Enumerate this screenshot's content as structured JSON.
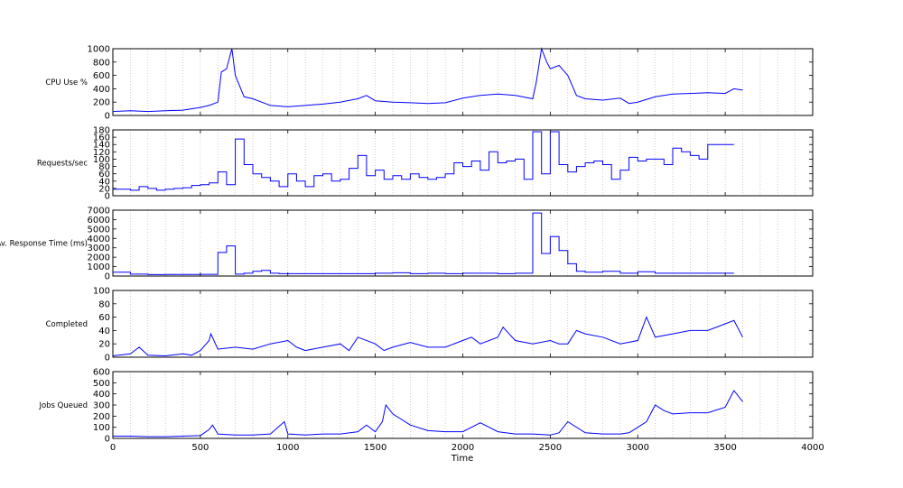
{
  "chart_data": [
    {
      "type": "line",
      "ylabel": "CPU Use %",
      "ylim": [
        0,
        1000
      ],
      "yticks": [
        "0",
        "200",
        "400",
        "600",
        "800",
        "1000"
      ],
      "xlim": [
        0,
        4000
      ],
      "grid": "vertical-dotted",
      "color": "#0000ff",
      "series": [
        {
          "x": [
            0,
            100,
            200,
            300,
            400,
            500,
            550,
            600,
            620,
            650,
            680,
            700,
            750,
            800,
            850,
            900,
            1000,
            1100,
            1200,
            1300,
            1400,
            1450,
            1500,
            1600,
            1700,
            1800,
            1900,
            2000,
            2100,
            2200,
            2300,
            2400,
            2420,
            2450,
            2480,
            2500,
            2550,
            2600,
            2650,
            2700,
            2800,
            2900,
            2950,
            3000,
            3100,
            3200,
            3300,
            3400,
            3500,
            3550,
            3600
          ],
          "y": [
            60,
            70,
            60,
            70,
            80,
            120,
            150,
            200,
            650,
            700,
            1000,
            600,
            280,
            250,
            200,
            150,
            130,
            150,
            170,
            200,
            250,
            300,
            220,
            200,
            190,
            180,
            190,
            260,
            300,
            320,
            300,
            250,
            500,
            1000,
            800,
            700,
            750,
            600,
            300,
            250,
            230,
            260,
            180,
            200,
            280,
            320,
            330,
            340,
            330,
            400,
            380
          ]
        }
      ]
    },
    {
      "type": "line",
      "ylabel": "Requests/sec",
      "ylim": [
        0,
        180
      ],
      "yticks": [
        "0",
        "20",
        "40",
        "60",
        "80",
        "100",
        "120",
        "140",
        "160",
        "180"
      ],
      "xlim": [
        0,
        4000
      ],
      "grid": "vertical-dotted",
      "step": true,
      "color": "#0000ff",
      "series": [
        {
          "x": [
            0,
            100,
            150,
            200,
            250,
            300,
            350,
            400,
            450,
            500,
            550,
            600,
            650,
            700,
            750,
            800,
            850,
            900,
            950,
            1000,
            1050,
            1100,
            1150,
            1200,
            1250,
            1300,
            1350,
            1400,
            1450,
            1500,
            1550,
            1600,
            1650,
            1700,
            1750,
            1800,
            1850,
            1900,
            1950,
            2000,
            2050,
            2100,
            2150,
            2200,
            2250,
            2300,
            2350,
            2400,
            2450,
            2500,
            2550,
            2600,
            2650,
            2700,
            2750,
            2800,
            2850,
            2900,
            2950,
            3000,
            3050,
            3100,
            3150,
            3200,
            3250,
            3300,
            3350,
            3400,
            3450,
            3500,
            3550
          ],
          "y": [
            18,
            15,
            25,
            20,
            15,
            18,
            20,
            22,
            28,
            30,
            35,
            65,
            30,
            155,
            85,
            60,
            50,
            40,
            25,
            60,
            40,
            25,
            55,
            60,
            40,
            45,
            75,
            110,
            55,
            70,
            45,
            55,
            45,
            60,
            50,
            45,
            50,
            60,
            90,
            80,
            95,
            70,
            120,
            90,
            95,
            100,
            45,
            175,
            60,
            175,
            85,
            65,
            80,
            90,
            95,
            85,
            45,
            70,
            105,
            95,
            100,
            100,
            85,
            130,
            120,
            110,
            100,
            140,
            140,
            140,
            140
          ]
        }
      ]
    },
    {
      "type": "line",
      "ylabel": "Av. Response Time (ms)",
      "ylim": [
        0,
        7000
      ],
      "yticks": [
        "0",
        "1000",
        "2000",
        "3000",
        "4000",
        "5000",
        "6000",
        "7000"
      ],
      "xlim": [
        0,
        4000
      ],
      "grid": "vertical-dotted",
      "step": true,
      "color": "#0000ff",
      "series": [
        {
          "x": [
            0,
            100,
            200,
            300,
            400,
            500,
            600,
            650,
            700,
            750,
            800,
            850,
            900,
            950,
            1000,
            1100,
            1200,
            1300,
            1400,
            1500,
            1600,
            1700,
            1800,
            1900,
            2000,
            2100,
            2200,
            2300,
            2400,
            2450,
            2500,
            2550,
            2600,
            2650,
            2700,
            2800,
            2900,
            3000,
            3100,
            3200,
            3300,
            3400,
            3500,
            3550
          ],
          "y": [
            400,
            200,
            150,
            160,
            170,
            180,
            2500,
            3200,
            200,
            300,
            500,
            600,
            300,
            250,
            250,
            250,
            250,
            250,
            250,
            300,
            350,
            250,
            300,
            250,
            300,
            300,
            250,
            300,
            6700,
            2400,
            4200,
            2700,
            1300,
            500,
            400,
            500,
            300,
            450,
            300,
            300,
            300,
            300,
            300,
            300
          ]
        }
      ]
    },
    {
      "type": "line",
      "ylabel": "Completed",
      "ylim": [
        0,
        100
      ],
      "yticks": [
        "0",
        "20",
        "40",
        "60",
        "80",
        "100"
      ],
      "xlim": [
        0,
        4000
      ],
      "grid": "vertical-dotted",
      "color": "#0000ff",
      "series": [
        {
          "x": [
            0,
            100,
            150,
            200,
            300,
            400,
            450,
            500,
            550,
            560,
            600,
            700,
            800,
            900,
            1000,
            1050,
            1100,
            1200,
            1300,
            1350,
            1400,
            1500,
            1550,
            1600,
            1700,
            1800,
            1900,
            2000,
            2050,
            2100,
            2200,
            2230,
            2300,
            2400,
            2500,
            2550,
            2600,
            2650,
            2700,
            2800,
            2900,
            3000,
            3050,
            3100,
            3200,
            3300,
            3400,
            3500,
            3550,
            3600
          ],
          "y": [
            2,
            5,
            15,
            3,
            2,
            5,
            3,
            10,
            25,
            35,
            12,
            15,
            12,
            20,
            25,
            15,
            10,
            15,
            20,
            10,
            30,
            20,
            10,
            15,
            22,
            15,
            15,
            25,
            30,
            20,
            30,
            45,
            25,
            20,
            25,
            20,
            20,
            40,
            35,
            30,
            20,
            25,
            60,
            30,
            35,
            40,
            40,
            50,
            55,
            30
          ]
        }
      ]
    },
    {
      "type": "line",
      "ylabel": "Jobs Queued",
      "ylim": [
        0,
        600
      ],
      "yticks": [
        "0",
        "100",
        "200",
        "300",
        "400",
        "500",
        "600"
      ],
      "xlim": [
        0,
        4000
      ],
      "xticks": [
        "0",
        "500",
        "1000",
        "1500",
        "2000",
        "2500",
        "3000",
        "3500",
        "4000"
      ],
      "xlabel": "Time",
      "grid": "vertical-dotted",
      "color": "#0000ff",
      "series": [
        {
          "x": [
            0,
            100,
            200,
            300,
            400,
            500,
            550,
            570,
            600,
            700,
            800,
            900,
            980,
            1000,
            1100,
            1200,
            1300,
            1400,
            1450,
            1500,
            1540,
            1560,
            1600,
            1700,
            1800,
            1900,
            2000,
            2100,
            2200,
            2300,
            2400,
            2500,
            2550,
            2600,
            2700,
            2800,
            2900,
            2950,
            3000,
            3050,
            3100,
            3150,
            3200,
            3300,
            3400,
            3500,
            3550,
            3600
          ],
          "y": [
            20,
            20,
            15,
            15,
            20,
            25,
            80,
            120,
            40,
            30,
            30,
            40,
            150,
            40,
            30,
            40,
            40,
            60,
            120,
            60,
            150,
            300,
            220,
            120,
            70,
            60,
            60,
            140,
            60,
            40,
            40,
            30,
            50,
            150,
            50,
            40,
            40,
            50,
            100,
            150,
            300,
            250,
            220,
            230,
            230,
            280,
            430,
            330
          ]
        }
      ]
    }
  ]
}
